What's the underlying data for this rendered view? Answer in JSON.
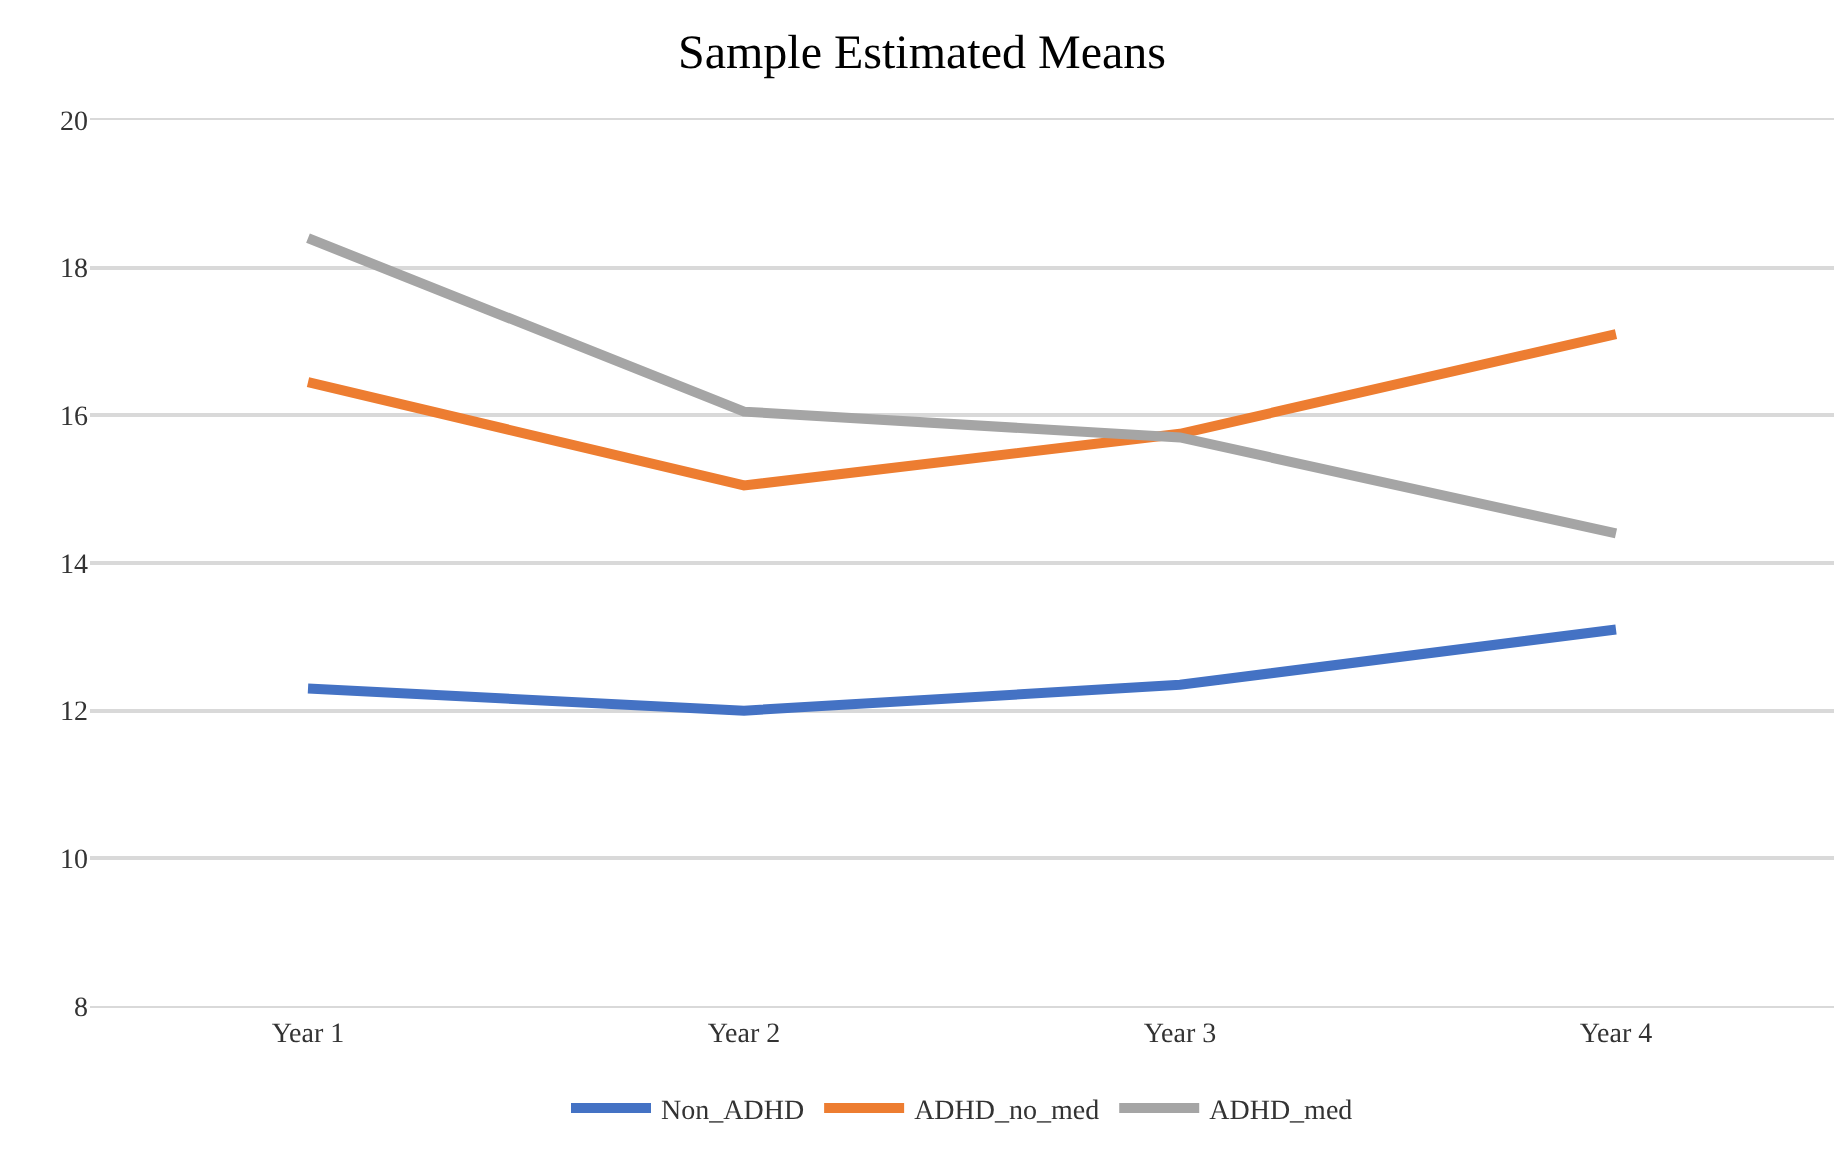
{
  "chart_data": {
    "type": "line",
    "title": "Sample Estimated Means",
    "categories": [
      "Year 1",
      "Year 2",
      "Year 3",
      "Year 4"
    ],
    "series": [
      {
        "name": "Non_ADHD",
        "color": "#4472c4",
        "values": [
          12.3,
          12.0,
          12.35,
          13.1
        ]
      },
      {
        "name": "ADHD_no_med",
        "color": "#ed7d31",
        "values": [
          16.45,
          15.05,
          15.75,
          17.1
        ]
      },
      {
        "name": "ADHD_med",
        "color": "#a5a5a5",
        "values": [
          18.4,
          16.05,
          15.7,
          14.4
        ]
      }
    ],
    "ylim": [
      8,
      20
    ],
    "yticks": [
      8,
      10,
      12,
      14,
      16,
      18,
      20
    ],
    "grid": "y",
    "legend": "bottom",
    "marker": "none",
    "line_style": "solid"
  }
}
